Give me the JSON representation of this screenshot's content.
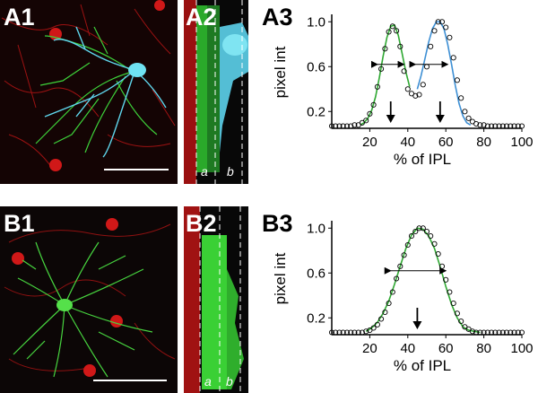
{
  "panels": {
    "a1": {
      "label": "A1"
    },
    "a2": {
      "label": "A2",
      "sublabels": [
        "a",
        "b"
      ]
    },
    "a3": {
      "label": "A3"
    },
    "b1": {
      "label": "B1"
    },
    "b2": {
      "label": "B2",
      "sublabels": [
        "a",
        "b"
      ]
    },
    "b3": {
      "label": "B3"
    }
  },
  "colors": {
    "green": "#2fa832",
    "blue": "#3d8fd4",
    "red": "#d11a1a",
    "cyan": "#4fd0e6",
    "bright_green": "#45e040"
  },
  "chart_data": [
    {
      "id": "A3",
      "type": "line",
      "xlabel": "% of IPL",
      "ylabel": "pixel int",
      "xlim": [
        0,
        100
      ],
      "ylim": [
        0.05,
        1.05
      ],
      "xticks": [
        20,
        40,
        60,
        80,
        100
      ],
      "yticks": [
        0.2,
        0.6,
        1.0
      ],
      "ytick_labels": [
        "0.2",
        "0.6",
        "1.0"
      ],
      "series": [
        {
          "style": "green-curve",
          "color": "#2fa832",
          "x": [
            15,
            17,
            19,
            21,
            23,
            25,
            27,
            29,
            31,
            33,
            35,
            37,
            39,
            41
          ],
          "y": [
            0.08,
            0.1,
            0.14,
            0.21,
            0.33,
            0.5,
            0.69,
            0.86,
            0.96,
            0.97,
            0.88,
            0.72,
            0.55,
            0.42
          ]
        },
        {
          "style": "blue-curve",
          "color": "#3d8fd4",
          "x": [
            45,
            47,
            49,
            51,
            53,
            55,
            57,
            59,
            61,
            63,
            65,
            67,
            69,
            71,
            73
          ],
          "y": [
            0.4,
            0.52,
            0.67,
            0.82,
            0.94,
            1.0,
            1.0,
            0.94,
            0.8,
            0.62,
            0.43,
            0.27,
            0.16,
            0.1,
            0.08
          ]
        },
        {
          "style": "circles",
          "x": [
            0,
            2,
            4,
            6,
            8,
            10,
            12,
            14,
            16,
            18,
            20,
            22,
            24,
            26,
            28,
            30,
            32,
            34,
            36,
            38,
            40,
            42,
            44,
            46,
            48,
            50,
            52,
            54,
            56,
            58,
            60,
            62,
            64,
            66,
            68,
            70,
            72,
            74,
            76,
            78,
            80,
            82,
            84,
            86,
            88,
            90,
            92,
            94,
            96,
            98,
            100
          ],
          "y": [
            0.07,
            0.07,
            0.07,
            0.07,
            0.07,
            0.07,
            0.08,
            0.08,
            0.1,
            0.12,
            0.18,
            0.26,
            0.42,
            0.58,
            0.76,
            0.91,
            0.96,
            0.92,
            0.78,
            0.56,
            0.4,
            0.36,
            0.34,
            0.35,
            0.44,
            0.6,
            0.78,
            0.92,
            1.0,
            1.0,
            0.95,
            0.86,
            0.68,
            0.48,
            0.32,
            0.2,
            0.14,
            0.11,
            0.09,
            0.08,
            0.08,
            0.07,
            0.07,
            0.07,
            0.07,
            0.07,
            0.07,
            0.07,
            0.07,
            0.07,
            0.07
          ]
        }
      ],
      "arrows_x": [
        31,
        57
      ],
      "fwhm": [
        {
          "from": 24,
          "to": 38
        },
        {
          "from": 44,
          "to": 61
        }
      ]
    },
    {
      "id": "B3",
      "type": "line",
      "xlabel": "% of IPL",
      "ylabel": "pixel int",
      "xlim": [
        0,
        100
      ],
      "ylim": [
        0.05,
        1.05
      ],
      "xticks": [
        20,
        40,
        60,
        80,
        100
      ],
      "yticks": [
        0.2,
        0.6,
        1.0
      ],
      "ytick_labels": [
        "0.2",
        "0.6",
        "1.0"
      ],
      "series": [
        {
          "style": "green-curve",
          "color": "#2fa832",
          "x": [
            18,
            21,
            24,
            27,
            30,
            33,
            36,
            39,
            42,
            45,
            48,
            51,
            54,
            57,
            60,
            63,
            66,
            69,
            72,
            75,
            78
          ],
          "y": [
            0.08,
            0.11,
            0.16,
            0.24,
            0.35,
            0.5,
            0.66,
            0.82,
            0.94,
            1.0,
            0.99,
            0.93,
            0.82,
            0.66,
            0.48,
            0.32,
            0.2,
            0.12,
            0.09,
            0.08,
            0.07
          ]
        },
        {
          "style": "circles",
          "x": [
            0,
            2,
            4,
            6,
            8,
            10,
            12,
            14,
            16,
            18,
            20,
            22,
            24,
            26,
            28,
            30,
            32,
            34,
            36,
            38,
            40,
            42,
            44,
            46,
            48,
            50,
            52,
            54,
            56,
            58,
            60,
            62,
            64,
            66,
            68,
            70,
            72,
            74,
            76,
            78,
            80,
            82,
            84,
            86,
            88,
            90,
            92,
            94,
            96,
            98,
            100
          ],
          "y": [
            0.07,
            0.07,
            0.07,
            0.07,
            0.07,
            0.07,
            0.07,
            0.07,
            0.07,
            0.08,
            0.09,
            0.11,
            0.14,
            0.19,
            0.25,
            0.33,
            0.43,
            0.55,
            0.66,
            0.76,
            0.85,
            0.93,
            0.97,
            1.0,
            1.0,
            0.97,
            0.93,
            0.86,
            0.77,
            0.66,
            0.54,
            0.43,
            0.33,
            0.24,
            0.17,
            0.12,
            0.1,
            0.08,
            0.07,
            0.07,
            0.07,
            0.07,
            0.07,
            0.07,
            0.07,
            0.07,
            0.07,
            0.07,
            0.07,
            0.07,
            0.07
          ]
        }
      ],
      "arrows_x": [
        45
      ],
      "fwhm": [
        {
          "from": 31,
          "to": 60
        }
      ]
    }
  ]
}
